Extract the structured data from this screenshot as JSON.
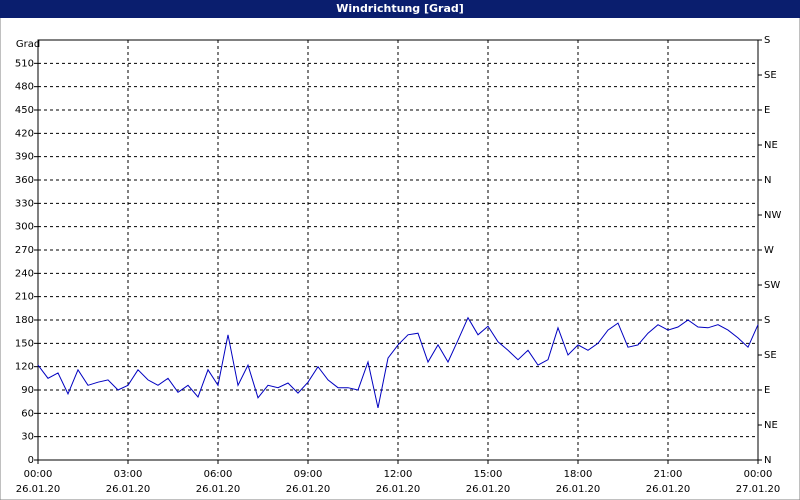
{
  "chart_data": {
    "type": "line",
    "title": "Windrichtung [Grad]",
    "y_label": "Grad",
    "x": [
      "26.01.20 00:00",
      "26.01.20 00:20",
      "26.01.20 00:40",
      "26.01.20 01:00",
      "26.01.20 01:20",
      "26.01.20 01:40",
      "26.01.20 02:00",
      "26.01.20 02:20",
      "26.01.20 02:40",
      "26.01.20 03:00",
      "26.01.20 03:20",
      "26.01.20 03:40",
      "26.01.20 04:00",
      "26.01.20 04:20",
      "26.01.20 04:40",
      "26.01.20 05:00",
      "26.01.20 05:20",
      "26.01.20 05:40",
      "26.01.20 06:00",
      "26.01.20 06:20",
      "26.01.20 06:40",
      "26.01.20 07:00",
      "26.01.20 07:20",
      "26.01.20 07:40",
      "26.01.20 08:00",
      "26.01.20 08:20",
      "26.01.20 08:40",
      "26.01.20 09:00",
      "26.01.20 09:20",
      "26.01.20 09:40",
      "26.01.20 10:00",
      "26.01.20 10:20",
      "26.01.20 10:40",
      "26.01.20 11:00",
      "26.01.20 11:20",
      "26.01.20 11:40",
      "26.01.20 12:00",
      "26.01.20 12:20",
      "26.01.20 12:40",
      "26.01.20 13:00",
      "26.01.20 13:20",
      "26.01.20 13:40",
      "26.01.20 14:00",
      "26.01.20 14:20",
      "26.01.20 14:40",
      "26.01.20 15:00",
      "26.01.20 15:20",
      "26.01.20 15:40",
      "26.01.20 16:00",
      "26.01.20 16:20",
      "26.01.20 16:40",
      "26.01.20 17:00",
      "26.01.20 17:20",
      "26.01.20 17:40",
      "26.01.20 18:00",
      "26.01.20 18:20",
      "26.01.20 18:40",
      "26.01.20 19:00",
      "26.01.20 19:20",
      "26.01.20 19:40",
      "26.01.20 20:00",
      "26.01.20 20:20",
      "26.01.20 20:40",
      "26.01.20 21:00",
      "26.01.20 21:20",
      "26.01.20 21:40",
      "26.01.20 22:00",
      "26.01.20 22:20",
      "26.01.20 22:40",
      "26.01.20 23:00",
      "26.01.20 23:20",
      "26.01.20 23:40",
      "27.01.20 00:00"
    ],
    "series": [
      {
        "name": "Windrichtung",
        "color": "#0000c0",
        "values": [
          122,
          105,
          112,
          85,
          116,
          96,
          100,
          103,
          90,
          96,
          116,
          103,
          96,
          105,
          87,
          96,
          81,
          116,
          96,
          161,
          96,
          122,
          80,
          96,
          93,
          99,
          86,
          100,
          120,
          103,
          93,
          93,
          90,
          126,
          67,
          131,
          148,
          161,
          163,
          126,
          148,
          126,
          154,
          183,
          161,
          172,
          152,
          141,
          129,
          141,
          122,
          129,
          170,
          135,
          148,
          141,
          150,
          167,
          176,
          145,
          148,
          163,
          174,
          167,
          171,
          180,
          171,
          170,
          174,
          167,
          157,
          145,
          174
        ]
      }
    ],
    "xlim": [
      "26.01.20 00:00",
      "27.01.20 00:00"
    ],
    "xticks": [
      {
        "value": "26.01.20 00:00",
        "time": "00:00",
        "date": "26.01.20"
      },
      {
        "value": "26.01.20 03:00",
        "time": "03:00",
        "date": "26.01.20"
      },
      {
        "value": "26.01.20 06:00",
        "time": "06:00",
        "date": "26.01.20"
      },
      {
        "value": "26.01.20 09:00",
        "time": "09:00",
        "date": "26.01.20"
      },
      {
        "value": "26.01.20 12:00",
        "time": "12:00",
        "date": "26.01.20"
      },
      {
        "value": "26.01.20 15:00",
        "time": "15:00",
        "date": "26.01.20"
      },
      {
        "value": "26.01.20 18:00",
        "time": "18:00",
        "date": "26.01.20"
      },
      {
        "value": "26.01.20 21:00",
        "time": "21:00",
        "date": "26.01.20"
      },
      {
        "value": "27.01.20 00:00",
        "time": "00:00",
        "date": "27.01.20"
      }
    ],
    "ylim": [
      0,
      540
    ],
    "yticks": [
      0,
      30,
      60,
      90,
      120,
      150,
      180,
      210,
      240,
      270,
      300,
      330,
      360,
      390,
      420,
      450,
      480,
      510
    ],
    "y2lim": [
      0,
      540
    ],
    "y2ticks": [
      {
        "value": 0,
        "label": "N"
      },
      {
        "value": 45,
        "label": "NE"
      },
      {
        "value": 90,
        "label": "E"
      },
      {
        "value": 135,
        "label": "SE"
      },
      {
        "value": 180,
        "label": "S"
      },
      {
        "value": 225,
        "label": "SW"
      },
      {
        "value": 270,
        "label": "W"
      },
      {
        "value": 315,
        "label": "NW"
      },
      {
        "value": 360,
        "label": "N"
      },
      {
        "value": 405,
        "label": "NE"
      },
      {
        "value": 450,
        "label": "E"
      },
      {
        "value": 495,
        "label": "SE"
      },
      {
        "value": 540,
        "label": "S"
      }
    ],
    "grid": true
  }
}
